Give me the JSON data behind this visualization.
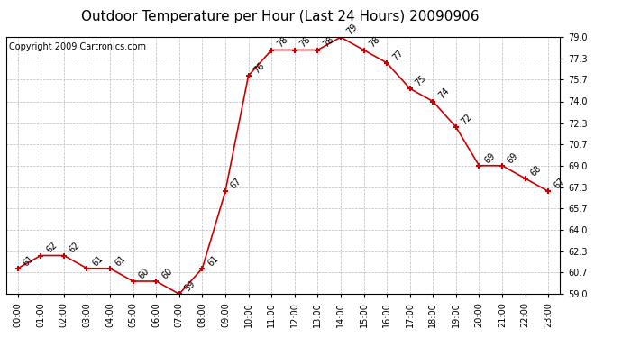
{
  "title": "Outdoor Temperature per Hour (Last 24 Hours) 20090906",
  "copyright": "Copyright 2009 Cartronics.com",
  "hours": [
    "00:00",
    "01:00",
    "02:00",
    "03:00",
    "04:00",
    "05:00",
    "06:00",
    "07:00",
    "08:00",
    "09:00",
    "10:00",
    "11:00",
    "12:00",
    "13:00",
    "14:00",
    "15:00",
    "16:00",
    "17:00",
    "18:00",
    "19:00",
    "20:00",
    "21:00",
    "22:00",
    "23:00"
  ],
  "temps": [
    61,
    62,
    62,
    61,
    61,
    60,
    60,
    59,
    61,
    67,
    76,
    78,
    78,
    78,
    79,
    78,
    77,
    75,
    74,
    72,
    69,
    69,
    68,
    67
  ],
  "ylim": [
    59.0,
    79.0
  ],
  "yticks": [
    59.0,
    60.7,
    62.3,
    64.0,
    65.7,
    67.3,
    69.0,
    70.7,
    72.3,
    74.0,
    75.7,
    77.3,
    79.0
  ],
  "line_color": "#cc0000",
  "marker_color": "#cc0000",
  "bg_color": "#ffffff",
  "grid_color": "#bbbbbb",
  "title_fontsize": 11,
  "copyright_fontsize": 7,
  "label_fontsize": 7,
  "tick_fontsize": 7
}
